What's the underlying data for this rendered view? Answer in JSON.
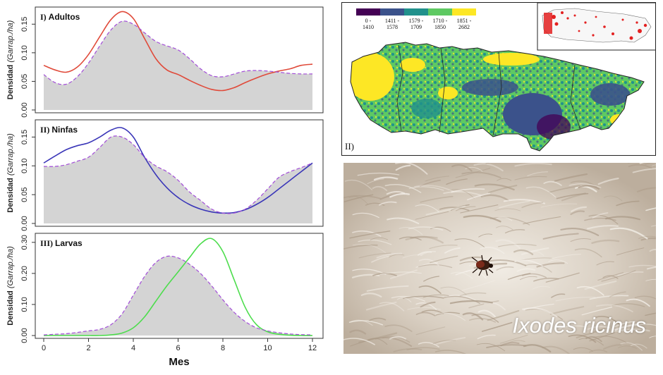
{
  "chart_data": [
    {
      "type": "line",
      "title": "Adultos",
      "panel_label": "I)",
      "xlabel": "",
      "ylabel_prefix": "Densidad",
      "ylabel_unit": "(Garrap./ha)",
      "xlim": [
        0,
        12
      ],
      "ylim": [
        0,
        0.175
      ],
      "yticks": [
        "0.00",
        "0.05",
        "0.10",
        "0.15"
      ],
      "ytick_values": [
        0,
        0.05,
        0.1,
        0.15
      ],
      "colors": {
        "solid": "#e04a3a",
        "dashed": "#a24cd8",
        "fill": "#d4d4d4"
      },
      "x": [
        0,
        0.5,
        1,
        1.5,
        2,
        2.5,
        3,
        3.5,
        4,
        4.5,
        5,
        5.5,
        6,
        6.5,
        7,
        7.5,
        8,
        8.5,
        9,
        9.5,
        10,
        10.5,
        11,
        11.5,
        12
      ],
      "series": [
        {
          "style": "solid",
          "values": [
            0.078,
            0.07,
            0.066,
            0.075,
            0.097,
            0.128,
            0.158,
            0.172,
            0.16,
            0.125,
            0.09,
            0.07,
            0.062,
            0.052,
            0.043,
            0.036,
            0.034,
            0.039,
            0.048,
            0.056,
            0.063,
            0.068,
            0.072,
            0.078,
            0.08
          ]
        },
        {
          "style": "dashed",
          "values": [
            0.062,
            0.048,
            0.045,
            0.058,
            0.082,
            0.112,
            0.14,
            0.155,
            0.15,
            0.135,
            0.12,
            0.112,
            0.105,
            0.09,
            0.072,
            0.06,
            0.058,
            0.063,
            0.068,
            0.069,
            0.068,
            0.066,
            0.064,
            0.063,
            0.063
          ]
        }
      ]
    },
    {
      "type": "line",
      "title": "Ninfas",
      "panel_label": "II)",
      "xlabel": "",
      "ylabel_prefix": "Densidad",
      "ylabel_unit": "(Garrap./ha)",
      "xlim": [
        0,
        12
      ],
      "ylim": [
        0,
        0.175
      ],
      "yticks": [
        "0.00",
        "0.05",
        "0.10",
        "0.15"
      ],
      "ytick_values": [
        0,
        0.05,
        0.1,
        0.15
      ],
      "colors": {
        "solid": "#3a36b8",
        "dashed": "#a24cd8",
        "fill": "#d4d4d4"
      },
      "x": [
        0,
        0.5,
        1,
        1.5,
        2,
        2.5,
        3,
        3.5,
        4,
        4.5,
        5,
        5.5,
        6,
        6.5,
        7,
        7.5,
        8,
        8.5,
        9,
        9.5,
        10,
        10.5,
        11,
        11.5,
        12
      ],
      "series": [
        {
          "style": "solid",
          "values": [
            0.105,
            0.117,
            0.128,
            0.135,
            0.14,
            0.15,
            0.162,
            0.166,
            0.15,
            0.115,
            0.085,
            0.062,
            0.045,
            0.033,
            0.025,
            0.02,
            0.018,
            0.019,
            0.024,
            0.033,
            0.045,
            0.06,
            0.075,
            0.09,
            0.105
          ]
        },
        {
          "style": "dashed",
          "values": [
            0.099,
            0.099,
            0.102,
            0.108,
            0.115,
            0.132,
            0.15,
            0.15,
            0.137,
            0.115,
            0.1,
            0.09,
            0.075,
            0.055,
            0.04,
            0.025,
            0.018,
            0.018,
            0.025,
            0.04,
            0.06,
            0.08,
            0.09,
            0.097,
            0.105
          ]
        }
      ]
    },
    {
      "type": "line",
      "title": "Larvas",
      "panel_label": "III)",
      "xlabel": "Mes",
      "ylabel_prefix": "Densidad",
      "ylabel_unit": "(Garrap./ha)",
      "xlim": [
        0,
        12
      ],
      "ylim": [
        0,
        0.32
      ],
      "yticks": [
        "0.00",
        "0.10",
        "0.20",
        "0.30"
      ],
      "ytick_values": [
        0,
        0.1,
        0.2,
        0.3
      ],
      "xticks": [
        "0",
        "2",
        "4",
        "6",
        "8",
        "10",
        "12"
      ],
      "xtick_values": [
        0,
        2,
        4,
        6,
        8,
        10,
        12
      ],
      "colors": {
        "solid": "#4ddd4d",
        "dashed": "#a24cd8",
        "fill": "#d4d4d4"
      },
      "x": [
        0,
        0.5,
        1,
        1.5,
        2,
        2.5,
        3,
        3.5,
        4,
        4.5,
        5,
        5.5,
        6,
        6.5,
        7,
        7.5,
        8,
        8.5,
        9,
        9.5,
        10,
        10.5,
        11,
        11.5,
        12
      ],
      "series": [
        {
          "style": "solid",
          "values": [
            0.0,
            0.0,
            0.0,
            0.0,
            0.0,
            0.0,
            0.002,
            0.008,
            0.025,
            0.06,
            0.11,
            0.16,
            0.205,
            0.25,
            0.295,
            0.312,
            0.27,
            0.18,
            0.09,
            0.035,
            0.012,
            0.004,
            0.001,
            0.0,
            0.0
          ]
        },
        {
          "style": "dashed",
          "values": [
            0.002,
            0.004,
            0.006,
            0.01,
            0.015,
            0.02,
            0.035,
            0.07,
            0.13,
            0.19,
            0.235,
            0.255,
            0.25,
            0.23,
            0.2,
            0.16,
            0.115,
            0.075,
            0.045,
            0.025,
            0.015,
            0.009,
            0.005,
            0.003,
            0.002
          ]
        }
      ]
    }
  ],
  "map": {
    "panel_label": "II)",
    "legend": [
      "0 - 1410",
      "1411 - 1578",
      "1579 - 1709",
      "1710 - 1850",
      "1851 - 2682"
    ],
    "legend_colors": [
      "#440154",
      "#3b528b",
      "#21918c",
      "#5ec962",
      "#fde725"
    ]
  },
  "photo": {
    "caption": "Ixodes ricinus"
  }
}
